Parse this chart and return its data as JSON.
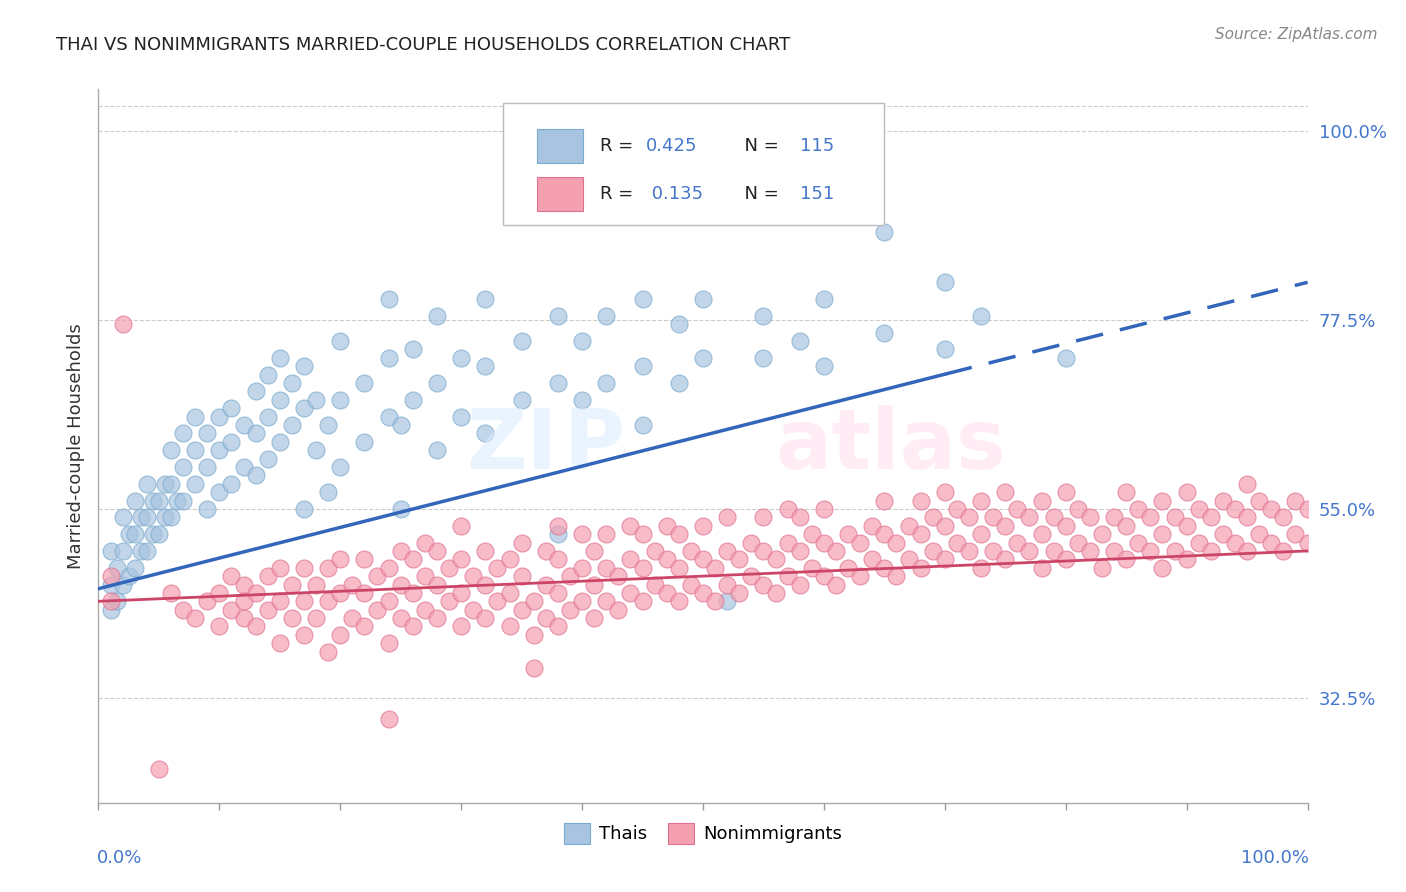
{
  "title": "THAI VS NONIMMIGRANTS MARRIED-COUPLE HOUSEHOLDS CORRELATION CHART",
  "source": "Source: ZipAtlas.com",
  "ylabel": "Married-couple Households",
  "ytick_labels": [
    "32.5%",
    "55.0%",
    "77.5%",
    "100.0%"
  ],
  "ytick_values": [
    0.325,
    0.55,
    0.775,
    1.0
  ],
  "legend_thai_R": "0.425",
  "legend_thai_N": "115",
  "legend_nonimm_R": "0.135",
  "legend_nonimm_N": "151",
  "thai_color": "#A8C4E0",
  "thai_edge_color": "#7AAACE",
  "nonimm_color": "#F4A0B0",
  "nonimm_edge_color": "#E07090",
  "trend_thai_color": "#3366BB",
  "trend_nonimm_color": "#CC4466",
  "xmin": 0.0,
  "xmax": 1.0,
  "ymin": 0.2,
  "ymax": 1.05,
  "thai_trend_x0": 0.0,
  "thai_trend_y0": 0.455,
  "thai_trend_x1": 1.0,
  "thai_trend_y1": 0.82,
  "thai_trend_solid_end": 0.7,
  "nonimm_trend_x0": 0.0,
  "nonimm_trend_y0": 0.44,
  "nonimm_trend_x1": 1.0,
  "nonimm_trend_y1": 0.5,
  "thai_scatter": [
    [
      0.01,
      0.43
    ],
    [
      0.01,
      0.46
    ],
    [
      0.01,
      0.5
    ],
    [
      0.015,
      0.44
    ],
    [
      0.015,
      0.48
    ],
    [
      0.02,
      0.46
    ],
    [
      0.02,
      0.5
    ],
    [
      0.02,
      0.54
    ],
    [
      0.025,
      0.47
    ],
    [
      0.025,
      0.52
    ],
    [
      0.03,
      0.48
    ],
    [
      0.03,
      0.52
    ],
    [
      0.03,
      0.56
    ],
    [
      0.035,
      0.5
    ],
    [
      0.035,
      0.54
    ],
    [
      0.04,
      0.5
    ],
    [
      0.04,
      0.54
    ],
    [
      0.04,
      0.58
    ],
    [
      0.045,
      0.52
    ],
    [
      0.045,
      0.56
    ],
    [
      0.05,
      0.52
    ],
    [
      0.05,
      0.56
    ],
    [
      0.055,
      0.54
    ],
    [
      0.055,
      0.58
    ],
    [
      0.06,
      0.54
    ],
    [
      0.06,
      0.58
    ],
    [
      0.06,
      0.62
    ],
    [
      0.065,
      0.56
    ],
    [
      0.07,
      0.56
    ],
    [
      0.07,
      0.6
    ],
    [
      0.07,
      0.64
    ],
    [
      0.08,
      0.58
    ],
    [
      0.08,
      0.62
    ],
    [
      0.08,
      0.66
    ],
    [
      0.09,
      0.55
    ],
    [
      0.09,
      0.6
    ],
    [
      0.09,
      0.64
    ],
    [
      0.1,
      0.57
    ],
    [
      0.1,
      0.62
    ],
    [
      0.1,
      0.66
    ],
    [
      0.11,
      0.58
    ],
    [
      0.11,
      0.63
    ],
    [
      0.11,
      0.67
    ],
    [
      0.12,
      0.6
    ],
    [
      0.12,
      0.65
    ],
    [
      0.13,
      0.59
    ],
    [
      0.13,
      0.64
    ],
    [
      0.13,
      0.69
    ],
    [
      0.14,
      0.61
    ],
    [
      0.14,
      0.66
    ],
    [
      0.14,
      0.71
    ],
    [
      0.15,
      0.63
    ],
    [
      0.15,
      0.68
    ],
    [
      0.15,
      0.73
    ],
    [
      0.16,
      0.65
    ],
    [
      0.16,
      0.7
    ],
    [
      0.17,
      0.55
    ],
    [
      0.17,
      0.67
    ],
    [
      0.17,
      0.72
    ],
    [
      0.18,
      0.62
    ],
    [
      0.18,
      0.68
    ],
    [
      0.19,
      0.57
    ],
    [
      0.19,
      0.65
    ],
    [
      0.2,
      0.6
    ],
    [
      0.2,
      0.68
    ],
    [
      0.2,
      0.75
    ],
    [
      0.22,
      0.63
    ],
    [
      0.22,
      0.7
    ],
    [
      0.24,
      0.66
    ],
    [
      0.24,
      0.73
    ],
    [
      0.24,
      0.8
    ],
    [
      0.25,
      0.55
    ],
    [
      0.25,
      0.65
    ],
    [
      0.26,
      0.68
    ],
    [
      0.26,
      0.74
    ],
    [
      0.28,
      0.62
    ],
    [
      0.28,
      0.7
    ],
    [
      0.28,
      0.78
    ],
    [
      0.3,
      0.66
    ],
    [
      0.3,
      0.73
    ],
    [
      0.32,
      0.64
    ],
    [
      0.32,
      0.72
    ],
    [
      0.32,
      0.8
    ],
    [
      0.35,
      0.68
    ],
    [
      0.35,
      0.75
    ],
    [
      0.38,
      0.52
    ],
    [
      0.38,
      0.7
    ],
    [
      0.38,
      0.78
    ],
    [
      0.4,
      0.68
    ],
    [
      0.4,
      0.75
    ],
    [
      0.42,
      0.7
    ],
    [
      0.42,
      0.78
    ],
    [
      0.45,
      0.65
    ],
    [
      0.45,
      0.72
    ],
    [
      0.45,
      0.8
    ],
    [
      0.48,
      0.7
    ],
    [
      0.48,
      0.77
    ],
    [
      0.5,
      0.73
    ],
    [
      0.5,
      0.8
    ],
    [
      0.5,
      0.9
    ],
    [
      0.52,
      0.44
    ],
    [
      0.55,
      0.73
    ],
    [
      0.55,
      0.78
    ],
    [
      0.58,
      0.75
    ],
    [
      0.6,
      0.72
    ],
    [
      0.6,
      0.8
    ],
    [
      0.65,
      0.76
    ],
    [
      0.65,
      0.88
    ],
    [
      0.7,
      0.74
    ],
    [
      0.7,
      0.82
    ],
    [
      0.73,
      0.78
    ],
    [
      0.8,
      0.73
    ]
  ],
  "nonimm_scatter": [
    [
      0.01,
      0.44
    ],
    [
      0.01,
      0.47
    ],
    [
      0.02,
      0.77
    ],
    [
      0.05,
      0.24
    ],
    [
      0.06,
      0.45
    ],
    [
      0.07,
      0.43
    ],
    [
      0.08,
      0.42
    ],
    [
      0.09,
      0.44
    ],
    [
      0.1,
      0.41
    ],
    [
      0.1,
      0.45
    ],
    [
      0.11,
      0.43
    ],
    [
      0.11,
      0.47
    ],
    [
      0.12,
      0.42
    ],
    [
      0.12,
      0.46
    ],
    [
      0.12,
      0.44
    ],
    [
      0.13,
      0.41
    ],
    [
      0.13,
      0.45
    ],
    [
      0.14,
      0.43
    ],
    [
      0.14,
      0.47
    ],
    [
      0.15,
      0.39
    ],
    [
      0.15,
      0.44
    ],
    [
      0.15,
      0.48
    ],
    [
      0.16,
      0.42
    ],
    [
      0.16,
      0.46
    ],
    [
      0.17,
      0.4
    ],
    [
      0.17,
      0.44
    ],
    [
      0.17,
      0.48
    ],
    [
      0.18,
      0.42
    ],
    [
      0.18,
      0.46
    ],
    [
      0.19,
      0.38
    ],
    [
      0.19,
      0.44
    ],
    [
      0.19,
      0.48
    ],
    [
      0.2,
      0.4
    ],
    [
      0.2,
      0.45
    ],
    [
      0.2,
      0.49
    ],
    [
      0.21,
      0.42
    ],
    [
      0.21,
      0.46
    ],
    [
      0.22,
      0.41
    ],
    [
      0.22,
      0.45
    ],
    [
      0.22,
      0.49
    ],
    [
      0.23,
      0.43
    ],
    [
      0.23,
      0.47
    ],
    [
      0.24,
      0.39
    ],
    [
      0.24,
      0.44
    ],
    [
      0.24,
      0.48
    ],
    [
      0.24,
      0.3
    ],
    [
      0.25,
      0.42
    ],
    [
      0.25,
      0.46
    ],
    [
      0.25,
      0.5
    ],
    [
      0.26,
      0.41
    ],
    [
      0.26,
      0.45
    ],
    [
      0.26,
      0.49
    ],
    [
      0.27,
      0.43
    ],
    [
      0.27,
      0.47
    ],
    [
      0.27,
      0.51
    ],
    [
      0.28,
      0.42
    ],
    [
      0.28,
      0.46
    ],
    [
      0.28,
      0.5
    ],
    [
      0.29,
      0.44
    ],
    [
      0.29,
      0.48
    ],
    [
      0.3,
      0.41
    ],
    [
      0.3,
      0.45
    ],
    [
      0.3,
      0.49
    ],
    [
      0.3,
      0.53
    ],
    [
      0.31,
      0.43
    ],
    [
      0.31,
      0.47
    ],
    [
      0.32,
      0.42
    ],
    [
      0.32,
      0.46
    ],
    [
      0.32,
      0.5
    ],
    [
      0.33,
      0.44
    ],
    [
      0.33,
      0.48
    ],
    [
      0.34,
      0.41
    ],
    [
      0.34,
      0.45
    ],
    [
      0.34,
      0.49
    ],
    [
      0.35,
      0.43
    ],
    [
      0.35,
      0.47
    ],
    [
      0.35,
      0.51
    ],
    [
      0.36,
      0.4
    ],
    [
      0.36,
      0.36
    ],
    [
      0.36,
      0.44
    ],
    [
      0.37,
      0.42
    ],
    [
      0.37,
      0.46
    ],
    [
      0.37,
      0.5
    ],
    [
      0.38,
      0.41
    ],
    [
      0.38,
      0.45
    ],
    [
      0.38,
      0.49
    ],
    [
      0.38,
      0.53
    ],
    [
      0.39,
      0.43
    ],
    [
      0.39,
      0.47
    ],
    [
      0.4,
      0.44
    ],
    [
      0.4,
      0.48
    ],
    [
      0.4,
      0.52
    ],
    [
      0.41,
      0.42
    ],
    [
      0.41,
      0.46
    ],
    [
      0.41,
      0.5
    ],
    [
      0.42,
      0.44
    ],
    [
      0.42,
      0.48
    ],
    [
      0.42,
      0.52
    ],
    [
      0.43,
      0.43
    ],
    [
      0.43,
      0.47
    ],
    [
      0.44,
      0.45
    ],
    [
      0.44,
      0.49
    ],
    [
      0.44,
      0.53
    ],
    [
      0.45,
      0.44
    ],
    [
      0.45,
      0.48
    ],
    [
      0.45,
      0.52
    ],
    [
      0.46,
      0.46
    ],
    [
      0.46,
      0.5
    ],
    [
      0.47,
      0.45
    ],
    [
      0.47,
      0.49
    ],
    [
      0.47,
      0.53
    ],
    [
      0.48,
      0.44
    ],
    [
      0.48,
      0.48
    ],
    [
      0.48,
      0.52
    ],
    [
      0.49,
      0.46
    ],
    [
      0.49,
      0.5
    ],
    [
      0.5,
      0.45
    ],
    [
      0.5,
      0.49
    ],
    [
      0.5,
      0.53
    ],
    [
      0.51,
      0.44
    ],
    [
      0.51,
      0.48
    ],
    [
      0.52,
      0.46
    ],
    [
      0.52,
      0.5
    ],
    [
      0.52,
      0.54
    ],
    [
      0.53,
      0.45
    ],
    [
      0.53,
      0.49
    ],
    [
      0.54,
      0.47
    ],
    [
      0.54,
      0.51
    ],
    [
      0.55,
      0.46
    ],
    [
      0.55,
      0.5
    ],
    [
      0.55,
      0.54
    ],
    [
      0.56,
      0.45
    ],
    [
      0.56,
      0.49
    ],
    [
      0.57,
      0.47
    ],
    [
      0.57,
      0.51
    ],
    [
      0.57,
      0.55
    ],
    [
      0.58,
      0.46
    ],
    [
      0.58,
      0.5
    ],
    [
      0.58,
      0.54
    ],
    [
      0.59,
      0.48
    ],
    [
      0.59,
      0.52
    ],
    [
      0.6,
      0.47
    ],
    [
      0.6,
      0.51
    ],
    [
      0.6,
      0.55
    ],
    [
      0.61,
      0.46
    ],
    [
      0.61,
      0.5
    ],
    [
      0.62,
      0.48
    ],
    [
      0.62,
      0.52
    ],
    [
      0.63,
      0.47
    ],
    [
      0.63,
      0.51
    ],
    [
      0.64,
      0.49
    ],
    [
      0.64,
      0.53
    ],
    [
      0.65,
      0.48
    ],
    [
      0.65,
      0.52
    ],
    [
      0.65,
      0.56
    ],
    [
      0.66,
      0.47
    ],
    [
      0.66,
      0.51
    ],
    [
      0.67,
      0.49
    ],
    [
      0.67,
      0.53
    ],
    [
      0.68,
      0.48
    ],
    [
      0.68,
      0.52
    ],
    [
      0.68,
      0.56
    ],
    [
      0.69,
      0.5
    ],
    [
      0.69,
      0.54
    ],
    [
      0.7,
      0.49
    ],
    [
      0.7,
      0.53
    ],
    [
      0.7,
      0.57
    ],
    [
      0.71,
      0.51
    ],
    [
      0.71,
      0.55
    ],
    [
      0.72,
      0.5
    ],
    [
      0.72,
      0.54
    ],
    [
      0.73,
      0.48
    ],
    [
      0.73,
      0.52
    ],
    [
      0.73,
      0.56
    ],
    [
      0.74,
      0.5
    ],
    [
      0.74,
      0.54
    ],
    [
      0.75,
      0.49
    ],
    [
      0.75,
      0.53
    ],
    [
      0.75,
      0.57
    ],
    [
      0.76,
      0.51
    ],
    [
      0.76,
      0.55
    ],
    [
      0.77,
      0.5
    ],
    [
      0.77,
      0.54
    ],
    [
      0.78,
      0.48
    ],
    [
      0.78,
      0.52
    ],
    [
      0.78,
      0.56
    ],
    [
      0.79,
      0.5
    ],
    [
      0.79,
      0.54
    ],
    [
      0.8,
      0.49
    ],
    [
      0.8,
      0.53
    ],
    [
      0.8,
      0.57
    ],
    [
      0.81,
      0.51
    ],
    [
      0.81,
      0.55
    ],
    [
      0.82,
      0.5
    ],
    [
      0.82,
      0.54
    ],
    [
      0.83,
      0.48
    ],
    [
      0.83,
      0.52
    ],
    [
      0.84,
      0.5
    ],
    [
      0.84,
      0.54
    ],
    [
      0.85,
      0.49
    ],
    [
      0.85,
      0.53
    ],
    [
      0.85,
      0.57
    ],
    [
      0.86,
      0.51
    ],
    [
      0.86,
      0.55
    ],
    [
      0.87,
      0.5
    ],
    [
      0.87,
      0.54
    ],
    [
      0.88,
      0.48
    ],
    [
      0.88,
      0.52
    ],
    [
      0.88,
      0.56
    ],
    [
      0.89,
      0.5
    ],
    [
      0.89,
      0.54
    ],
    [
      0.9,
      0.49
    ],
    [
      0.9,
      0.53
    ],
    [
      0.9,
      0.57
    ],
    [
      0.91,
      0.51
    ],
    [
      0.91,
      0.55
    ],
    [
      0.92,
      0.5
    ],
    [
      0.92,
      0.54
    ],
    [
      0.93,
      0.52
    ],
    [
      0.93,
      0.56
    ],
    [
      0.94,
      0.51
    ],
    [
      0.94,
      0.55
    ],
    [
      0.95,
      0.5
    ],
    [
      0.95,
      0.54
    ],
    [
      0.95,
      0.58
    ],
    [
      0.96,
      0.52
    ],
    [
      0.96,
      0.56
    ],
    [
      0.97,
      0.51
    ],
    [
      0.97,
      0.55
    ],
    [
      0.98,
      0.5
    ],
    [
      0.98,
      0.54
    ],
    [
      0.99,
      0.52
    ],
    [
      0.99,
      0.56
    ],
    [
      1.0,
      0.51
    ],
    [
      1.0,
      0.55
    ]
  ]
}
